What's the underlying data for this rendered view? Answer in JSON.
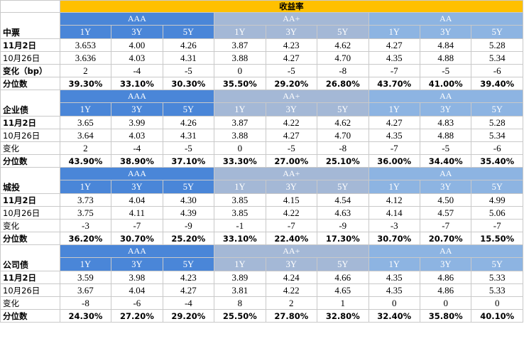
{
  "title": "收益率",
  "groups": [
    "AAA",
    "AA+",
    "AA"
  ],
  "tenors": [
    "1Y",
    "3Y",
    "5Y"
  ],
  "colors": {
    "title_bg": "#ffc000",
    "aaa_bg": "#4a86d8",
    "aaa_plus_bg": "#a4b8d6",
    "aa_bg": "#8db4e2"
  },
  "sections": [
    {
      "name": "中票",
      "rows": [
        {
          "label": "11月2日",
          "values": [
            "3.653",
            "4.00",
            "4.26",
            "3.87",
            "4.23",
            "4.62",
            "4.27",
            "4.84",
            "5.28"
          ]
        },
        {
          "label": "10月26日",
          "values": [
            "3.636",
            "4.03",
            "4.31",
            "3.88",
            "4.27",
            "4.70",
            "4.35",
            "4.88",
            "5.34"
          ]
        },
        {
          "label": "变化（bp）",
          "values": [
            "2",
            "-4",
            "-5",
            "0",
            "-5",
            "-8",
            "-7",
            "-5",
            "-6"
          ]
        },
        {
          "label": "分位数",
          "values": [
            "39.30%",
            "33.10%",
            "30.30%",
            "35.50%",
            "29.20%",
            "26.80%",
            "43.70%",
            "41.00%",
            "39.40%"
          ]
        }
      ]
    },
    {
      "name": "企业债",
      "rows": [
        {
          "label": "11月2日",
          "values": [
            "3.65",
            "3.99",
            "4.26",
            "3.87",
            "4.22",
            "4.62",
            "4.27",
            "4.83",
            "5.28"
          ]
        },
        {
          "label": "10月26日",
          "values": [
            "3.64",
            "4.03",
            "4.31",
            "3.88",
            "4.27",
            "4.70",
            "4.35",
            "4.88",
            "5.34"
          ]
        },
        {
          "label": "变化",
          "values": [
            "2",
            "-4",
            "-5",
            "0",
            "-5",
            "-8",
            "-7",
            "-5",
            "-6"
          ]
        },
        {
          "label": "分位数",
          "values": [
            "43.90%",
            "38.90%",
            "37.10%",
            "33.30%",
            "27.00%",
            "25.10%",
            "36.00%",
            "34.40%",
            "35.40%"
          ]
        }
      ]
    },
    {
      "name": "城投",
      "rows": [
        {
          "label": "11月2日",
          "values": [
            "3.73",
            "4.04",
            "4.30",
            "3.85",
            "4.15",
            "4.54",
            "4.12",
            "4.50",
            "4.99"
          ]
        },
        {
          "label": "10月26日",
          "values": [
            "3.75",
            "4.11",
            "4.39",
            "3.85",
            "4.22",
            "4.63",
            "4.14",
            "4.57",
            "5.06"
          ]
        },
        {
          "label": "变化",
          "values": [
            "-3",
            "-7",
            "-9",
            "-1",
            "-7",
            "-9",
            "-3",
            "-7",
            "-7"
          ]
        },
        {
          "label": "分位数",
          "values": [
            "36.20%",
            "30.70%",
            "25.20%",
            "33.10%",
            "22.40%",
            "17.30%",
            "30.70%",
            "20.70%",
            "15.50%"
          ]
        }
      ]
    },
    {
      "name": "公司债",
      "rows": [
        {
          "label": "11月2日",
          "values": [
            "3.59",
            "3.98",
            "4.23",
            "3.89",
            "4.24",
            "4.66",
            "4.35",
            "4.86",
            "5.33"
          ]
        },
        {
          "label": "10月26日",
          "values": [
            "3.67",
            "4.04",
            "4.27",
            "3.81",
            "4.22",
            "4.65",
            "4.35",
            "4.86",
            "5.33"
          ]
        },
        {
          "label": "变化",
          "values": [
            "-8",
            "-6",
            "-4",
            "8",
            "2",
            "1",
            "0",
            "0",
            "0"
          ]
        },
        {
          "label": "分位数",
          "values": [
            "24.30%",
            "27.20%",
            "29.20%",
            "25.50%",
            "27.80%",
            "32.80%",
            "32.40%",
            "35.80%",
            "40.10%"
          ]
        }
      ]
    }
  ]
}
